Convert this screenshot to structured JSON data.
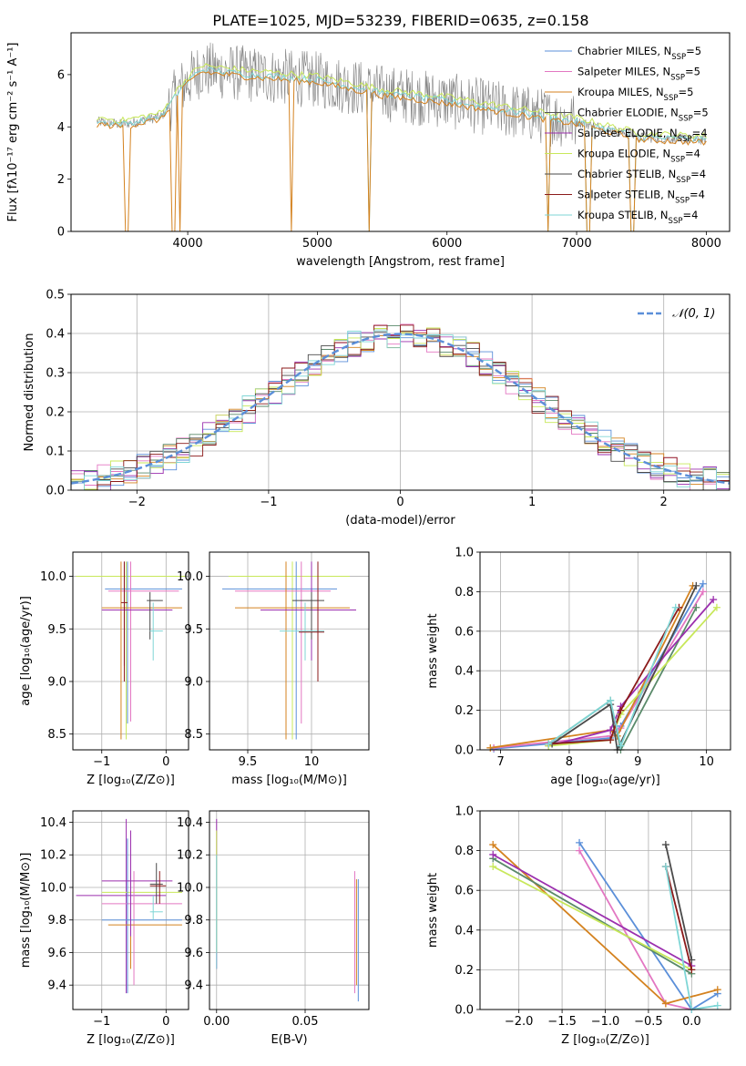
{
  "title": "PLATE=1025, MJD=53239, FIBERID=0635, z=0.158",
  "palette": [
    "#5b8fd9",
    "#e377c2",
    "#d4821f",
    "#555555",
    "#9b2fae",
    "#c8e85a",
    "#4a4a4a",
    "#8b1a1a",
    "#7fd6d6"
  ],
  "legend_entries": [
    {
      "base": "Chabrier MILES, N",
      "sub": "SSP",
      "tail": "=5"
    },
    {
      "base": "Salpeter MILES, N",
      "sub": "SSP",
      "tail": "=5"
    },
    {
      "base": "Kroupa MILES, N",
      "sub": "SSP",
      "tail": "=5"
    },
    {
      "base": "Chabrier ELODIE, N",
      "sub": "SSP",
      "tail": "=5"
    },
    {
      "base": "Salpeter ELODIE, N",
      "sub": "SSP",
      "tail": "=4"
    },
    {
      "base": "Kroupa ELODIE, N",
      "sub": "SSP",
      "tail": "=4"
    },
    {
      "base": "Chabrier STELIB, N",
      "sub": "SSP",
      "tail": "=4"
    },
    {
      "base": "Salpeter STELIB, N",
      "sub": "SSP",
      "tail": "=4"
    },
    {
      "base": "Kroupa STELIB, N",
      "sub": "SSP",
      "tail": "=4"
    }
  ],
  "chart_data": [
    {
      "id": "spectrum",
      "type": "line",
      "xlabel": "wavelength [Angstrom, rest frame]",
      "ylabel": "Flux [fλ10⁻¹⁷ erg cm⁻² s⁻¹ A⁻¹]",
      "xlim": [
        3100,
        8180
      ],
      "ylim": [
        0,
        7.6
      ],
      "xticks": [
        4000,
        5000,
        6000,
        7000,
        8000
      ],
      "yticks": [
        0,
        2,
        4,
        6
      ],
      "grid": false,
      "legend_position": "right",
      "continuum": {
        "x": [
          3300,
          3500,
          3800,
          3950,
          4100,
          4500,
          5000,
          5500,
          6000,
          6500,
          7000,
          7500,
          8000
        ],
        "y": [
          4.2,
          4.1,
          4.4,
          5.5,
          6.2,
          6.0,
          5.8,
          5.3,
          5.0,
          4.6,
          4.2,
          3.6,
          3.5
        ]
      },
      "dips": [
        3530,
        3890,
        3935,
        4800,
        5400,
        6780,
        7090,
        7430
      ]
    },
    {
      "id": "residuals",
      "type": "step",
      "xlabel": "(data-model)/error",
      "ylabel": "Normed distribution",
      "xlim": [
        -2.5,
        2.5
      ],
      "ylim": [
        0,
        0.5
      ],
      "xticks": [
        -2,
        -1,
        0,
        1,
        2
      ],
      "xtick_labels": [
        "−2",
        "−1",
        "0",
        "1",
        "2"
      ],
      "yticks": [
        0,
        0.1,
        0.2,
        0.3,
        0.4,
        0.5
      ],
      "grid": true,
      "legend": "𝒩(0, 1)",
      "legend_position": "top-right",
      "reference_curve": "normal(0,1)"
    },
    {
      "id": "age_vs_Z",
      "type": "errorbar",
      "xlabel": "Z [log₁₀(Z/Z⊙)]",
      "ylabel": "age  [log₁₀(age/yr)]",
      "xlim": [
        -1.45,
        0.35
      ],
      "ylim": [
        8.35,
        10.23
      ],
      "xticks": [
        -1,
        0
      ],
      "xtick_labels": [
        "−1",
        "0"
      ],
      "yticks": [
        8.5,
        9.0,
        9.5,
        10.0
      ],
      "grid": true
    },
    {
      "id": "age_vs_mass",
      "type": "errorbar",
      "xlabel": "mass [log₁₀(M/M⊙)]",
      "xlim": [
        9.2,
        10.45
      ],
      "ylim": [
        8.35,
        10.23
      ],
      "xticks": [
        9.5,
        10.0
      ],
      "yticks": [
        8.5,
        9.0,
        9.5,
        10.0
      ],
      "grid": true
    },
    {
      "id": "weight_vs_age",
      "type": "line",
      "xlabel": "age  [log₁₀(age/yr)]",
      "ylabel": "mass weight",
      "xlim": [
        6.7,
        10.35
      ],
      "ylim": [
        0,
        1.0
      ],
      "xticks": [
        7,
        8,
        9,
        10
      ],
      "yticks": [
        0,
        0.2,
        0.4,
        0.6,
        0.8,
        1.0
      ],
      "grid": true,
      "series": [
        {
          "x": [
            6.9,
            8.6,
            8.75,
            9.95
          ],
          "y": [
            0.005,
            0.06,
            0.12,
            0.84
          ]
        },
        {
          "x": [
            6.9,
            8.6,
            8.75,
            9.95
          ],
          "y": [
            0.01,
            0.07,
            0.11,
            0.8
          ]
        },
        {
          "x": [
            6.85,
            8.6,
            8.7,
            9.8
          ],
          "y": [
            0.01,
            0.1,
            0.07,
            0.83
          ]
        },
        {
          "x": [
            7.7,
            8.6,
            8.75,
            9.85
          ],
          "y": [
            0.03,
            0.25,
            0.0,
            0.72
          ]
        },
        {
          "x": [
            7.7,
            8.6,
            8.75,
            10.1
          ],
          "y": [
            0.02,
            0.1,
            0.22,
            0.76
          ]
        },
        {
          "x": [
            7.7,
            8.6,
            8.75,
            10.15
          ],
          "y": [
            0.02,
            0.05,
            0.18,
            0.72
          ]
        },
        {
          "x": [
            7.75,
            8.6,
            8.7,
            9.85
          ],
          "y": [
            0.03,
            0.23,
            0.0,
            0.83
          ]
        },
        {
          "x": [
            7.7,
            8.6,
            8.75,
            9.6
          ],
          "y": [
            0.03,
            0.05,
            0.2,
            0.72
          ]
        },
        {
          "x": [
            7.7,
            8.6,
            8.75,
            9.55
          ],
          "y": [
            0.03,
            0.25,
            0.02,
            0.72
          ]
        }
      ]
    },
    {
      "id": "mass_vs_Z",
      "type": "errorbar",
      "xlabel": "Z [log₁₀(Z/Z⊙)]",
      "ylabel": "mass [log₁₀(M/M⊙)]",
      "xlim": [
        -1.45,
        0.35
      ],
      "ylim": [
        9.25,
        10.47
      ],
      "xticks": [
        -1,
        0
      ],
      "xtick_labels": [
        "−1",
        "0"
      ],
      "yticks": [
        9.4,
        9.6,
        9.8,
        10.0,
        10.2,
        10.4
      ],
      "grid": true
    },
    {
      "id": "mass_vs_ebv",
      "type": "errorbar",
      "xlabel": "E(B-V)",
      "xlim": [
        -0.004,
        0.086
      ],
      "ylim": [
        9.25,
        10.47
      ],
      "xticks": [
        0.0,
        0.05
      ],
      "xtick_labels": [
        "0.00",
        "0.05"
      ],
      "yticks": [
        9.4,
        9.6,
        9.8,
        10.0,
        10.2,
        10.4
      ],
      "grid": true
    },
    {
      "id": "weight_vs_Z",
      "type": "line",
      "xlabel": "Z [log₁₀(Z/Z⊙)]",
      "ylabel": "mass weight",
      "xlim": [
        -2.45,
        0.45
      ],
      "ylim": [
        0,
        1.0
      ],
      "xticks": [
        -2.0,
        -1.5,
        -1.0,
        -0.5,
        0.0
      ],
      "xtick_labels": [
        "−2.0",
        "−1.5",
        "−1.0",
        "−0.5",
        "0.0"
      ],
      "yticks": [
        0,
        0.2,
        0.4,
        0.6,
        0.8,
        1.0
      ],
      "grid": true,
      "series": [
        {
          "x": [
            -1.3,
            0.0,
            0.3
          ],
          "y": [
            0.84,
            0.0,
            0.08
          ]
        },
        {
          "x": [
            -1.3,
            -0.3,
            0.0
          ],
          "y": [
            0.8,
            0.03,
            0.0
          ]
        },
        {
          "x": [
            -2.3,
            -0.3,
            0.3
          ],
          "y": [
            0.83,
            0.03,
            0.1
          ]
        },
        {
          "x": [
            -2.3,
            0.0
          ],
          "y": [
            0.76,
            0.18
          ]
        },
        {
          "x": [
            -2.3,
            0.0
          ],
          "y": [
            0.78,
            0.22
          ]
        },
        {
          "x": [
            -2.3,
            0.0
          ],
          "y": [
            0.72,
            0.2
          ]
        },
        {
          "x": [
            -0.3,
            0.0
          ],
          "y": [
            0.83,
            0.25
          ]
        },
        {
          "x": [
            -0.3,
            0.0
          ],
          "y": [
            0.72,
            0.2
          ]
        },
        {
          "x": [
            -0.3,
            0.0,
            0.3
          ],
          "y": [
            0.72,
            0.0,
            0.02
          ]
        }
      ]
    }
  ]
}
